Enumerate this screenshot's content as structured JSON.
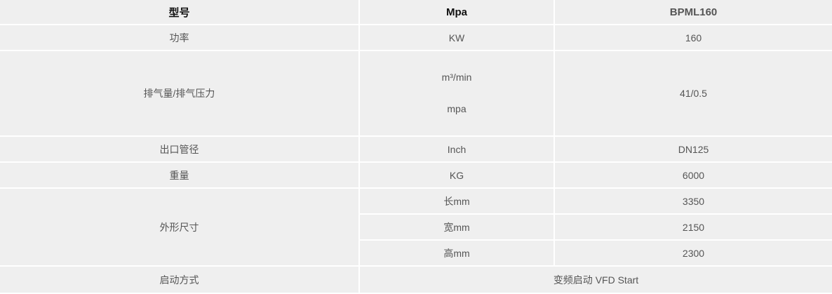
{
  "header": [
    "型号",
    "Mpa",
    "BPML160"
  ],
  "rows": {
    "power": {
      "label": "功率",
      "unit": "KW",
      "value": "160"
    },
    "flow": {
      "label": "排气量/排气压力",
      "unit_a": "m³/min",
      "unit_b": "mpa",
      "value": "41/0.5"
    },
    "outlet": {
      "label": "出口管径",
      "unit": "Inch",
      "value": "DN125"
    },
    "weight": {
      "label": "重量",
      "unit": "KG",
      "value": "6000"
    },
    "dimensions": {
      "label": "外形尺寸",
      "length": {
        "unit": "长mm",
        "value": "3350"
      },
      "width": {
        "unit": "宽mm",
        "value": "2150"
      },
      "height": {
        "unit": "高mm",
        "value": "2300"
      }
    },
    "start": {
      "label": "启动方式",
      "value": "变频启动 VFD Start"
    }
  }
}
